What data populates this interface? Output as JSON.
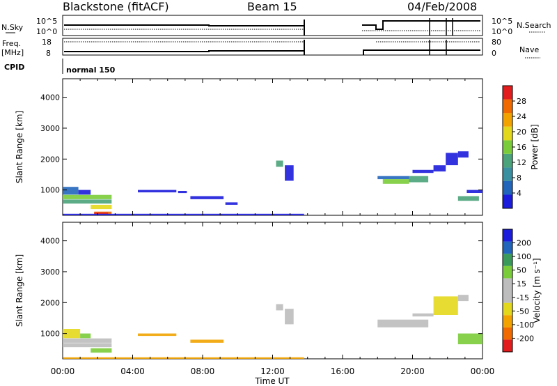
{
  "header": {
    "station": "Blackstone (fitACF)",
    "beam": "Beam 15",
    "date": "04/Feb/2008"
  },
  "status_panels": {
    "nsky_label": "N.Sky",
    "nsky_ticks": [
      "10^5",
      "10^0"
    ],
    "nsearch_label": "N.Search",
    "nsearch_ticks": [
      "10^5",
      "10^0"
    ],
    "freq_label": "Freq.",
    "freq_unit": "[MHz]",
    "freq_ticks": [
      "18",
      "8"
    ],
    "nave_label": "Nave",
    "nave_ticks": [
      "80",
      "0"
    ],
    "cpid_label": "CPID",
    "cpid_value": "normal 150"
  },
  "colors": {
    "power_scale": [
      "#1c1cdc",
      "#2266bb",
      "#3a8fa0",
      "#4aa37a",
      "#7acc3a",
      "#e4d81c",
      "#f2a300",
      "#f06a00",
      "#e21c1c"
    ],
    "velocity_scale": [
      "#e21c1c",
      "#f06a00",
      "#f2a300",
      "#e4d81c",
      "#bdbdbd",
      "#bdbdbd",
      "#7acc3a",
      "#3a9a5a",
      "#2266bb",
      "#1c1cdc"
    ]
  },
  "chart_data": [
    {
      "type": "heatmap",
      "name": "Power",
      "xlabel": "",
      "ylabel": "Slant Range [km]",
      "x_ticks": [
        "00:00",
        "04:00",
        "08:00",
        "12:00",
        "16:00",
        "20:00",
        "00:00"
      ],
      "xlim_hours": [
        0,
        24
      ],
      "ylim_km": [
        180,
        4600
      ],
      "y_ticks": [
        1000,
        2000,
        3000,
        4000
      ],
      "colorbar_label": "Power [dB]",
      "colorbar_ticks": [
        "4",
        "8",
        "12",
        "16",
        "20",
        "24",
        "28"
      ],
      "patches": [
        {
          "t": [
            0.0,
            0.9
          ],
          "r": [
            850,
            1100
          ],
          "c": 1
        },
        {
          "t": [
            0.9,
            1.6
          ],
          "r": [
            850,
            1000
          ],
          "c": 0
        },
        {
          "t": [
            0.0,
            2.8
          ],
          "r": [
            700,
            840
          ],
          "c": 4
        },
        {
          "t": [
            0.0,
            2.8
          ],
          "r": [
            560,
            690
          ],
          "c": 3
        },
        {
          "t": [
            1.6,
            2.8
          ],
          "r": [
            380,
            520
          ],
          "c": 5
        },
        {
          "t": [
            1.8,
            2.8
          ],
          "r": [
            200,
            300
          ],
          "c": 7
        },
        {
          "t": [
            1.8,
            2.6
          ],
          "r": [
            230,
            270
          ],
          "c": 8
        },
        {
          "t": [
            4.3,
            6.5
          ],
          "r": [
            920,
            1000
          ],
          "c": 0
        },
        {
          "t": [
            6.6,
            7.1
          ],
          "r": [
            900,
            970
          ],
          "c": 0
        },
        {
          "t": [
            7.3,
            9.2
          ],
          "r": [
            700,
            800
          ],
          "c": 0
        },
        {
          "t": [
            9.3,
            10.0
          ],
          "r": [
            520,
            600
          ],
          "c": 0
        },
        {
          "t": [
            12.2,
            12.6
          ],
          "r": [
            1750,
            1950
          ],
          "c": 3
        },
        {
          "t": [
            12.7,
            13.2
          ],
          "r": [
            1300,
            1800
          ],
          "c": 0
        },
        {
          "t": [
            18.0,
            19.8
          ],
          "r": [
            1350,
            1450
          ],
          "c": 1
        },
        {
          "t": [
            18.3,
            19.8
          ],
          "r": [
            1200,
            1350
          ],
          "c": 4
        },
        {
          "t": [
            19.8,
            20.9
          ],
          "r": [
            1250,
            1450
          ],
          "c": 3
        },
        {
          "t": [
            20.0,
            21.2
          ],
          "r": [
            1550,
            1650
          ],
          "c": 0
        },
        {
          "t": [
            21.2,
            21.9
          ],
          "r": [
            1600,
            1800
          ],
          "c": 0
        },
        {
          "t": [
            21.9,
            22.6
          ],
          "r": [
            1800,
            2200
          ],
          "c": 0
        },
        {
          "t": [
            22.6,
            23.2
          ],
          "r": [
            2050,
            2250
          ],
          "c": 0
        },
        {
          "t": [
            22.6,
            23.8
          ],
          "r": [
            650,
            800
          ],
          "c": 3
        },
        {
          "t": [
            23.1,
            24.0
          ],
          "r": [
            900,
            1000
          ],
          "c": 0
        },
        {
          "t": [
            0.0,
            13.8
          ],
          "r": [
            180,
            230
          ],
          "c": 0
        }
      ]
    },
    {
      "type": "heatmap",
      "name": "Velocity",
      "xlabel": "Time UT",
      "ylabel": "Slant Range [km]",
      "x_ticks": [
        "00:00",
        "04:00",
        "08:00",
        "12:00",
        "16:00",
        "20:00",
        "00:00"
      ],
      "xlim_hours": [
        0,
        24
      ],
      "ylim_km": [
        180,
        4600
      ],
      "y_ticks": [
        1000,
        2000,
        3000,
        4000
      ],
      "colorbar_label": "Velocity [m s⁻¹]",
      "colorbar_ticks": [
        "-200",
        "-100",
        "-50",
        "-15",
        "15",
        "50",
        "100",
        "200"
      ],
      "patches": [
        {
          "t": [
            0.0,
            1.0
          ],
          "r": [
            850,
            1150
          ],
          "c": 3
        },
        {
          "t": [
            1.0,
            1.6
          ],
          "r": [
            850,
            1000
          ],
          "c": 6
        },
        {
          "t": [
            0.0,
            2.8
          ],
          "r": [
            700,
            840
          ],
          "c": 4
        },
        {
          "t": [
            0.0,
            2.8
          ],
          "r": [
            560,
            690
          ],
          "c": 4
        },
        {
          "t": [
            1.6,
            2.8
          ],
          "r": [
            380,
            520
          ],
          "c": 6
        },
        {
          "t": [
            4.3,
            6.5
          ],
          "r": [
            920,
            1000
          ],
          "c": 2
        },
        {
          "t": [
            7.3,
            9.2
          ],
          "r": [
            700,
            800
          ],
          "c": 2
        },
        {
          "t": [
            12.2,
            12.6
          ],
          "r": [
            1750,
            1950
          ],
          "c": 4
        },
        {
          "t": [
            12.7,
            13.2
          ],
          "r": [
            1300,
            1800
          ],
          "c": 4
        },
        {
          "t": [
            18.0,
            20.9
          ],
          "r": [
            1200,
            1450
          ],
          "c": 4
        },
        {
          "t": [
            20.0,
            21.2
          ],
          "r": [
            1550,
            1650
          ],
          "c": 4
        },
        {
          "t": [
            21.2,
            22.6
          ],
          "r": [
            1600,
            2200
          ],
          "c": 3
        },
        {
          "t": [
            22.6,
            23.2
          ],
          "r": [
            2050,
            2250
          ],
          "c": 4
        },
        {
          "t": [
            22.6,
            24.0
          ],
          "r": [
            650,
            1000
          ],
          "c": 6
        },
        {
          "t": [
            0.0,
            13.8
          ],
          "r": [
            180,
            230
          ],
          "c": 2
        }
      ]
    }
  ]
}
